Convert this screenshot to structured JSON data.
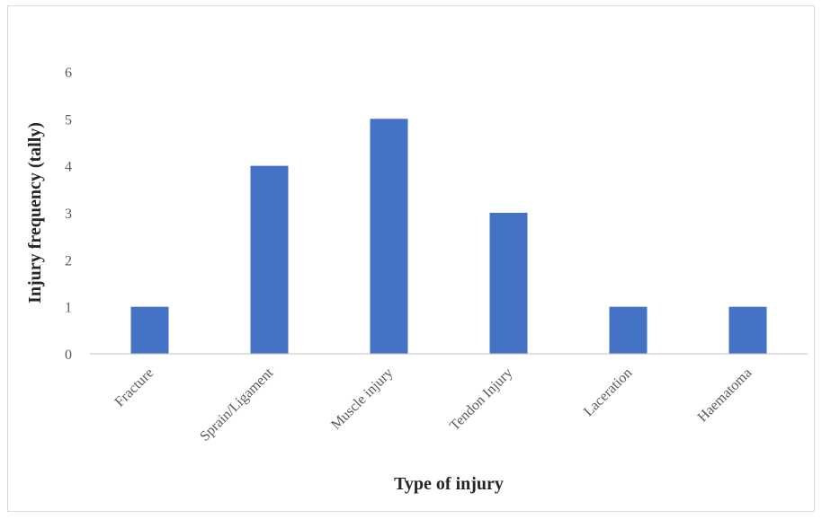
{
  "chart_data": {
    "type": "bar",
    "categories": [
      "Fracture",
      "Sprain/Ligament",
      "Muscle injury",
      "Tendon Injury",
      "Laceration",
      "Haematoma"
    ],
    "series": [
      {
        "values": [
          1,
          4,
          5,
          3,
          1,
          1
        ]
      }
    ],
    "title": "",
    "xlabel": "Type of injury",
    "ylabel": "Injury frequency (tally)",
    "ylim": [
      0,
      6
    ],
    "yticks": [
      0,
      1,
      2,
      3,
      4,
      5,
      6
    ],
    "grid": false,
    "legend": "none",
    "bar_color": "#4472c4",
    "axis_color": "#bfbfbf"
  }
}
